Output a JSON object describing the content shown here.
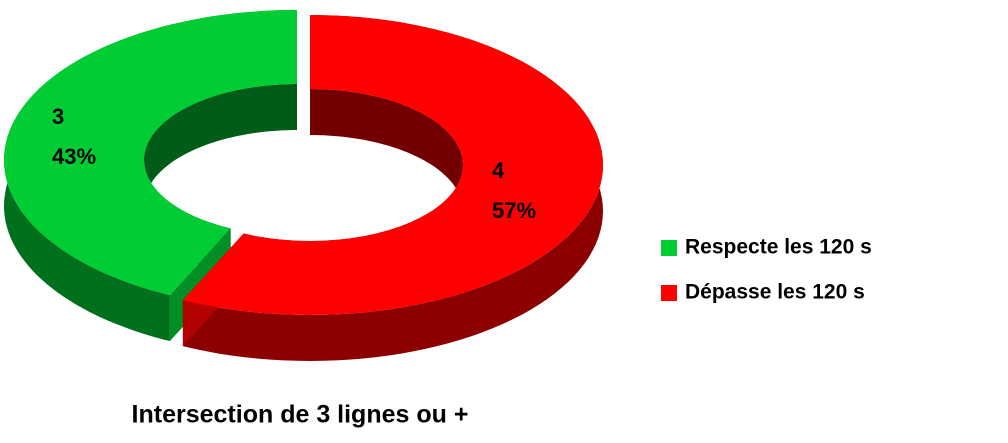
{
  "chart_data": {
    "type": "doughnut3d",
    "title": "Intersection de 3 lignes ou +",
    "categories": [
      "Respecte les 120 s",
      "Dépasse les 120 s"
    ],
    "values": [
      3,
      4
    ],
    "percent_labels": [
      "43%",
      "57%"
    ],
    "colors": [
      "#00cc33",
      "#ff0000"
    ],
    "legend": "right"
  }
}
